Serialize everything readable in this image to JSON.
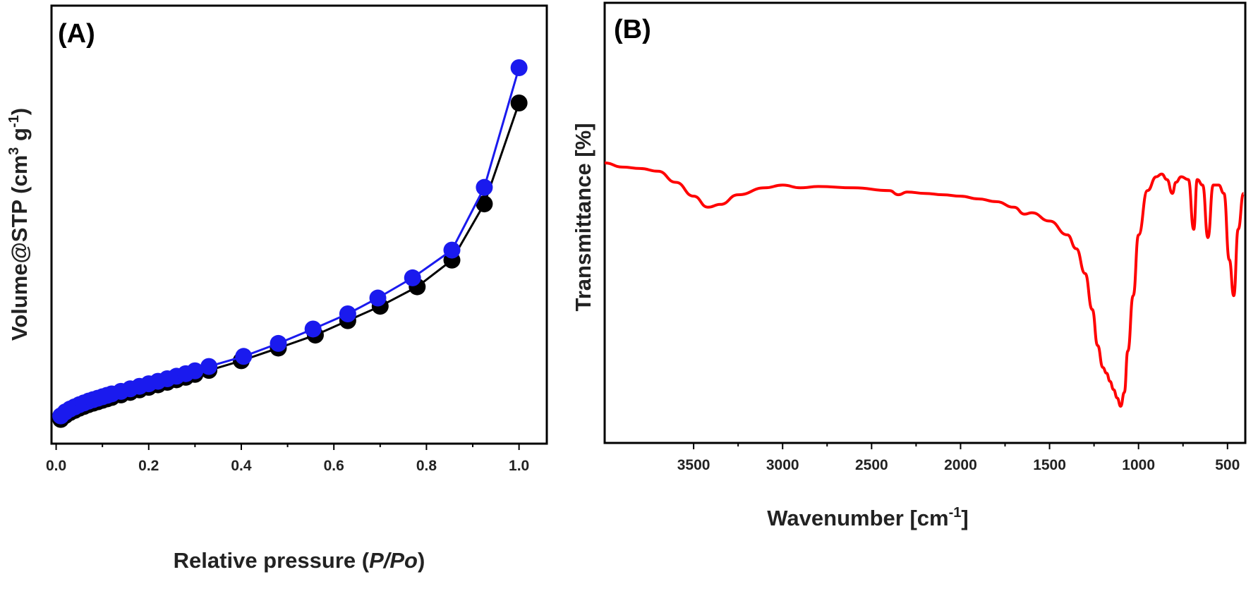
{
  "chart_data": [
    {
      "type": "line",
      "panel_label": "(A)",
      "xlabel": "Relative pressure",
      "xlabel_italic": "P/Po",
      "ylabel": "Volume@STP",
      "ylabel_unit_a": "(cm",
      "ylabel_unit_sup1": "3",
      "ylabel_unit_b": " g",
      "ylabel_unit_sup2": "-1",
      "ylabel_unit_c": ")",
      "xlim": [
        -0.01,
        1.06
      ],
      "ylim": [
        0,
        100
      ],
      "x_ticks": [
        0.0,
        0.2,
        0.4,
        0.6,
        0.8,
        1.0
      ],
      "x_tick_labels": [
        "0.0",
        "0.2",
        "0.4",
        "0.6",
        "0.8",
        "1.0"
      ],
      "y_ticks_labeled": false,
      "series": [
        {
          "color": "#000000",
          "x": [
            0.01,
            0.02,
            0.03,
            0.04,
            0.05,
            0.06,
            0.07,
            0.08,
            0.09,
            0.1,
            0.11,
            0.12,
            0.14,
            0.16,
            0.18,
            0.2,
            0.22,
            0.24,
            0.26,
            0.28,
            0.3,
            0.33,
            0.4,
            0.48,
            0.56,
            0.63,
            0.7,
            0.78,
            0.855,
            0.925,
            1.0
          ],
          "y": [
            3.2,
            4.3,
            5.1,
            5.7,
            6.3,
            6.8,
            7.3,
            7.7,
            8.1,
            8.5,
            8.9,
            9.3,
            10.0,
            10.7,
            11.4,
            12.1,
            12.8,
            13.5,
            14.2,
            14.9,
            15.7,
            16.8,
            19.5,
            23.0,
            26.6,
            30.6,
            34.6,
            40.0,
            47.4,
            63.0,
            91.0
          ]
        },
        {
          "color": "#1a1aee",
          "x": [
            0.01,
            0.02,
            0.03,
            0.04,
            0.05,
            0.06,
            0.07,
            0.08,
            0.09,
            0.1,
            0.11,
            0.12,
            0.14,
            0.16,
            0.18,
            0.2,
            0.22,
            0.24,
            0.26,
            0.28,
            0.3,
            0.33,
            0.405,
            0.48,
            0.555,
            0.63,
            0.695,
            0.77,
            0.855,
            0.925,
            1.0
          ],
          "y": [
            3.4,
            4.5,
            5.3,
            5.9,
            6.5,
            7.0,
            7.5,
            7.9,
            8.3,
            8.7,
            9.1,
            9.5,
            10.2,
            10.9,
            11.6,
            12.3,
            13.0,
            13.7,
            14.4,
            15.1,
            15.9,
            17.1,
            19.9,
            23.5,
            27.5,
            31.7,
            36.1,
            41.7,
            49.4,
            66.8,
            100.0
          ]
        }
      ]
    },
    {
      "type": "line",
      "panel_label": "(B)",
      "xlabel": "Wavenumber",
      "xlabel_unit_a": "[cm",
      "xlabel_unit_sup": "-1",
      "xlabel_unit_b": "]",
      "ylabel": "Transmittance [%]",
      "xlim": [
        4000,
        400
      ],
      "ylim": [
        0,
        100
      ],
      "x_reversed": true,
      "x_ticks": [
        3500,
        3000,
        2500,
        2000,
        1500,
        1000,
        500
      ],
      "x_tick_labels": [
        "3500",
        "3000",
        "2500",
        "2000",
        "1500",
        "1000",
        "500"
      ],
      "y_ticks_labeled": false,
      "series": [
        {
          "color": "#ff0000",
          "x": [
            4000,
            3900,
            3800,
            3700,
            3600,
            3500,
            3420,
            3350,
            3250,
            3100,
            3000,
            2900,
            2800,
            2600,
            2400,
            2350,
            2300,
            2200,
            2100,
            2000,
            1900,
            1800,
            1700,
            1640,
            1600,
            1500,
            1400,
            1350,
            1300,
            1260,
            1230,
            1200,
            1180,
            1160,
            1140,
            1120,
            1100,
            1080,
            1060,
            1030,
            1000,
            950,
            900,
            870,
            840,
            810,
            790,
            760,
            720,
            690,
            670,
            640,
            610,
            580,
            550,
            520,
            490,
            465,
            440,
            410
          ],
          "y": [
            88,
            86.5,
            86,
            85,
            81,
            76,
            72,
            73,
            76.5,
            79,
            80,
            79,
            79.5,
            79,
            78,
            76.5,
            77.5,
            77,
            76.5,
            76,
            75,
            74,
            72,
            69.5,
            70,
            67,
            62,
            57,
            48,
            35,
            22,
            14,
            12,
            9,
            6,
            3,
            0,
            5,
            20,
            40,
            62,
            78,
            83,
            84,
            82,
            77,
            81,
            83,
            82,
            64,
            82,
            80,
            61,
            80,
            80,
            77,
            53,
            40,
            64,
            77
          ]
        }
      ]
    }
  ]
}
